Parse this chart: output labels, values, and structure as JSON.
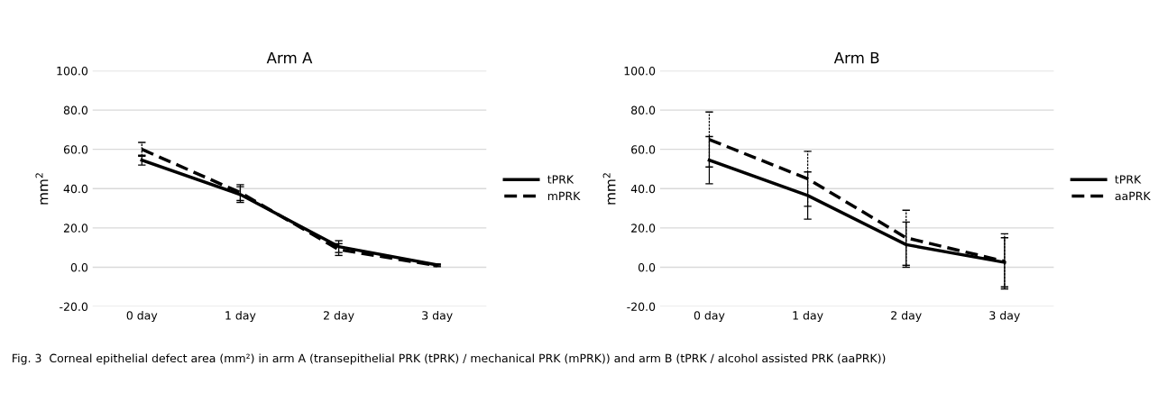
{
  "chart_data": [
    {
      "type": "line",
      "title": "Arm A",
      "ylabel": "mm$^{2}$",
      "categories": [
        "0 day",
        "1 day",
        "2 day",
        "3 day"
      ],
      "series": [
        {
          "name": "tPRK",
          "color": "#000000",
          "line_style": "solid",
          "values": [
            54.5,
            37,
            10.5,
            1.2
          ],
          "errors": [
            2.5,
            4,
            3,
            0.5
          ]
        },
        {
          "name": "mPRK",
          "color": "#000000",
          "line_style": "dashed",
          "values": [
            60,
            38,
            9,
            0.8
          ],
          "errors": [
            3.5,
            4,
            3,
            0.5
          ]
        }
      ],
      "ylim": [
        -20,
        100
      ],
      "yticks": [
        {
          "value": -20,
          "label": "-20.0"
        },
        {
          "value": 0,
          "label": "0.0"
        },
        {
          "value": 20,
          "label": "20.0"
        },
        {
          "value": 40,
          "label": "40.0"
        },
        {
          "value": 60,
          "label": "60.0"
        },
        {
          "value": 80,
          "label": "80.0"
        },
        {
          "value": 100,
          "label": "100.0"
        }
      ],
      "grid": "y",
      "legend": "right",
      "marker": "none",
      "annotations": [
        "Fig. 3  Corneal epithelial defect area (mm²) in arm A (transepithelial PRK (tPRK) / mechanical PRK (mPRK)) and arm B (tPRK / alcohol assisted PRK (aaPRK))"
      ]
    },
    {
      "type": "line",
      "title": "Arm B",
      "ylabel": "mm$^{2}$",
      "categories": [
        "0 day",
        "1 day",
        "2 day",
        "3 day"
      ],
      "series": [
        {
          "name": "tPRK",
          "color": "#000000",
          "line_style": "solid",
          "values": [
            54.5,
            36.5,
            11.5,
            2.5
          ],
          "errors": [
            12,
            12,
            11.5,
            12.5
          ]
        },
        {
          "name": "aaPRK",
          "color": "#000000",
          "line_style": "dashed",
          "values": [
            65,
            45,
            15,
            3
          ],
          "errors": [
            14,
            14,
            14,
            14
          ]
        }
      ],
      "ylim": [
        -20,
        100
      ],
      "yticks": [
        {
          "value": -20,
          "label": "-20.0"
        },
        {
          "value": 0,
          "label": "0.0"
        },
        {
          "value": 20,
          "label": "20.0"
        },
        {
          "value": 40,
          "label": "40.0"
        },
        {
          "value": 60,
          "label": "60.0"
        },
        {
          "value": 80,
          "label": "80.0"
        },
        {
          "value": 100,
          "label": "100.0"
        }
      ],
      "grid": "y",
      "legend": "right",
      "marker": "none"
    }
  ]
}
